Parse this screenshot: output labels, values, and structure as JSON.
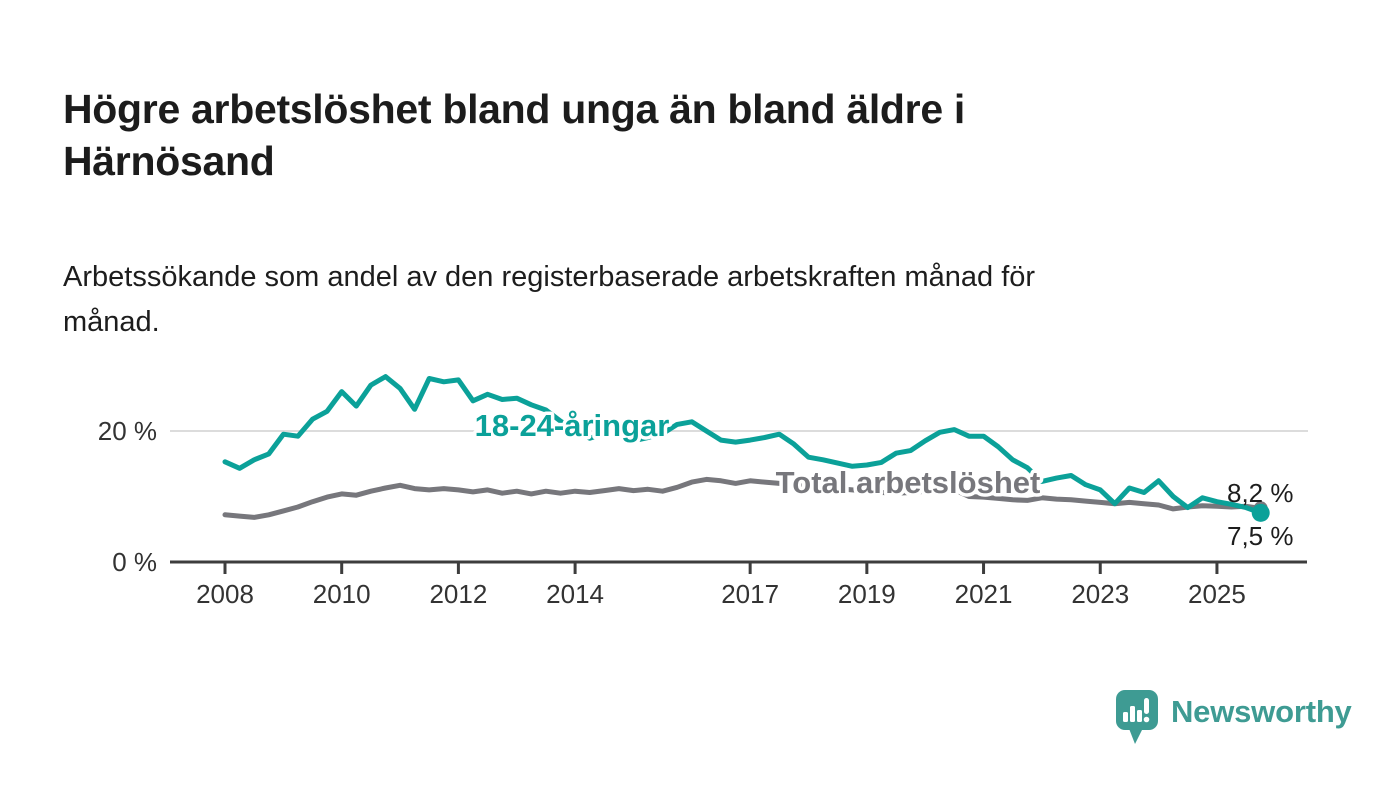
{
  "header": {
    "title_lines": [
      "Högre arbetslöshet bland unga än bland äldre i",
      "Härnösand"
    ],
    "subtitle_lines": [
      "Arbetssökande som andel av den registerbaserade arbetskraften månad för",
      "månad."
    ]
  },
  "footer": {
    "brand": "Newsworthy",
    "logo_icon": "speech-bubble-with-bar-chart-and-exclamation"
  },
  "colors": {
    "youth_line": "#0ba199",
    "total_line": "#77777c",
    "axis": "#3d3d3d",
    "gridline": "#dcdcdc",
    "tick_text": "#333333",
    "value_text": "#1d1d1d",
    "brand_teal": "#3e9b93",
    "background": "#ffffff"
  },
  "chart_data": {
    "type": "line",
    "title": "Högre arbetslöshet bland unga än bland äldre i Härnösand",
    "subtitle": "Arbetssökande som andel av den registerbaserade arbetskraften månad för månad.",
    "unit": "%",
    "xlabel": "",
    "ylabel": "",
    "xlim": [
      2007.1,
      2026.6
    ],
    "ylim": [
      0,
      34
    ],
    "grid": "single horizontal gridline at 20 %",
    "legend": "inline labels placed on the lines",
    "xticks": [
      2008,
      2010,
      2012,
      2014,
      2017,
      2019,
      2021,
      2023,
      2025
    ],
    "yticks": [
      {
        "value": 0,
        "label": "0 %"
      },
      {
        "value": 20,
        "label": "20 %"
      }
    ],
    "x": [
      2008.0,
      2008.25,
      2008.5,
      2008.75,
      2009.0,
      2009.25,
      2009.5,
      2009.75,
      2010.0,
      2010.25,
      2010.5,
      2010.75,
      2011.0,
      2011.25,
      2011.5,
      2011.75,
      2012.0,
      2012.25,
      2012.5,
      2012.75,
      2013.0,
      2013.25,
      2013.5,
      2013.75,
      2014.0,
      2014.25,
      2014.5,
      2014.75,
      2015.0,
      2015.25,
      2015.5,
      2015.75,
      2016.0,
      2016.25,
      2016.5,
      2016.75,
      2017.0,
      2017.25,
      2017.5,
      2017.75,
      2018.0,
      2018.25,
      2018.5,
      2018.75,
      2019.0,
      2019.25,
      2019.5,
      2019.75,
      2020.0,
      2020.25,
      2020.5,
      2020.75,
      2021.0,
      2021.25,
      2021.5,
      2021.75,
      2022.0,
      2022.25,
      2022.5,
      2022.75,
      2023.0,
      2023.25,
      2023.5,
      2023.75,
      2024.0,
      2024.25,
      2024.5,
      2024.75,
      2025.0,
      2025.25,
      2025.5,
      2025.75
    ],
    "series": [
      {
        "id": "youth",
        "name": "18-24-åringar",
        "color": "#0ba199",
        "end_label": "7,5 %",
        "end_value": 7.5,
        "values": [
          15.3,
          14.3,
          15.6,
          16.5,
          19.5,
          19.2,
          21.8,
          23.0,
          26.0,
          23.8,
          27.0,
          28.3,
          26.5,
          23.3,
          28.0,
          27.5,
          27.8,
          24.6,
          25.6,
          24.8,
          25.0,
          24.0,
          23.2,
          21.5,
          20.2,
          18.9,
          19.6,
          20.2,
          18.5,
          19.0,
          19.6,
          21.0,
          21.4,
          20.0,
          18.6,
          18.3,
          18.6,
          19.0,
          19.5,
          18.0,
          16.0,
          15.6,
          15.1,
          14.6,
          14.8,
          15.2,
          16.6,
          17.0,
          18.5,
          19.8,
          20.2,
          19.2,
          19.2,
          17.6,
          15.6,
          14.4,
          12.3,
          12.8,
          13.2,
          11.8,
          11.0,
          8.9,
          11.3,
          10.6,
          12.4,
          10.0,
          8.3,
          9.8,
          9.2,
          8.8,
          8.3,
          7.5
        ]
      },
      {
        "id": "total",
        "name": "Total arbetslöshet",
        "color": "#77777c",
        "end_label": "8,2 %",
        "end_value": 8.2,
        "values": [
          7.2,
          7.0,
          6.8,
          7.2,
          7.8,
          8.4,
          9.2,
          9.9,
          10.4,
          10.2,
          10.8,
          11.3,
          11.7,
          11.2,
          11.0,
          11.2,
          11.0,
          10.7,
          11.0,
          10.5,
          10.8,
          10.4,
          10.8,
          10.5,
          10.8,
          10.6,
          10.9,
          11.2,
          10.9,
          11.1,
          10.8,
          11.4,
          12.2,
          12.6,
          12.4,
          12.0,
          12.4,
          12.2,
          12.0,
          11.8,
          11.6,
          11.4,
          11.2,
          11.0,
          10.8,
          10.6,
          10.5,
          10.6,
          10.8,
          11.2,
          11.0,
          10.0,
          9.9,
          9.7,
          9.5,
          9.4,
          9.8,
          9.6,
          9.5,
          9.3,
          9.1,
          8.9,
          9.1,
          8.9,
          8.7,
          8.1,
          8.4,
          8.6,
          8.5,
          8.4,
          8.5,
          8.2
        ]
      }
    ]
  }
}
